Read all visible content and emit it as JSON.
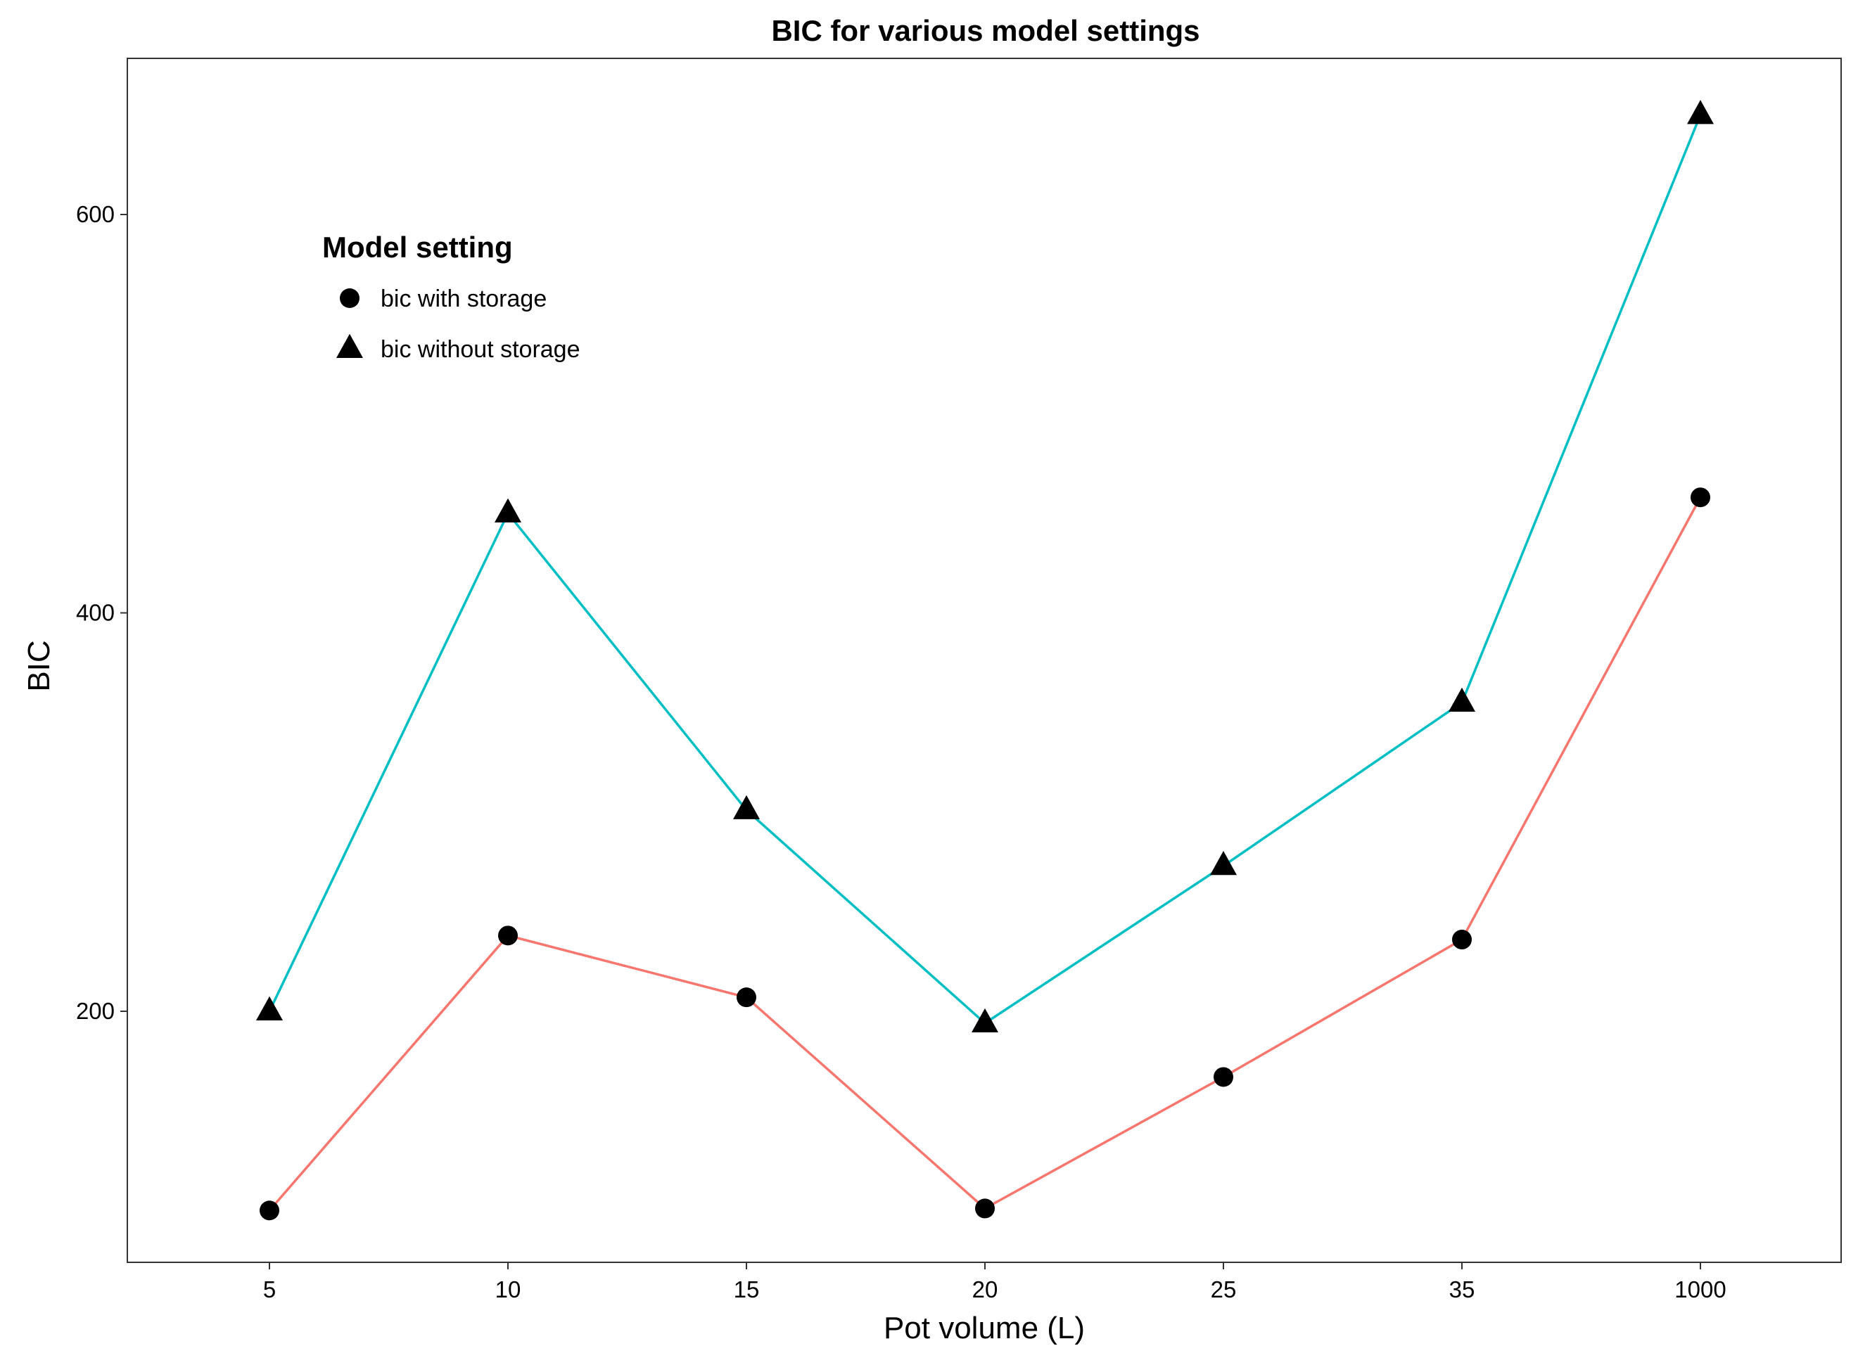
{
  "chart_data": {
    "type": "line",
    "title": "BIC for various model settings",
    "xlabel": "Pot volume (L)",
    "ylabel": "BIC",
    "categories": [
      "5",
      "10",
      "15",
      "20",
      "25",
      "35",
      "1000"
    ],
    "y_ticks": [
      200,
      400,
      600
    ],
    "ylim": [
      70,
      680
    ],
    "grid": false,
    "legend": {
      "title": "Model setting",
      "placement": "top-left"
    },
    "series": [
      {
        "name": "bic with storage",
        "marker": "circle",
        "color": "#F8766D",
        "values": [
          100,
          238,
          207,
          101,
          167,
          236,
          458
        ]
      },
      {
        "name": "bic without storage",
        "marker": "triangle",
        "color": "#00BFC4",
        "values": [
          200,
          450,
          301,
          194,
          273,
          355,
          650
        ]
      }
    ]
  }
}
